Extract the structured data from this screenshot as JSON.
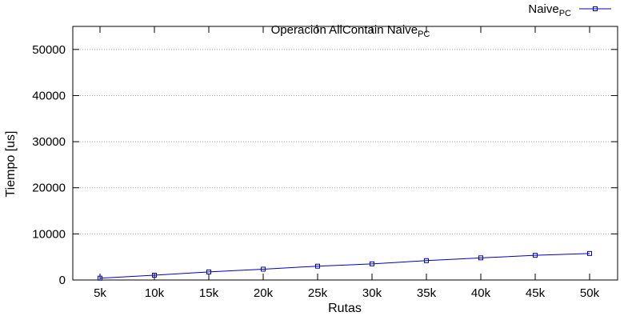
{
  "chart_data": {
    "type": "line",
    "title": "Operación AllContain Naive",
    "title_subscript": "PC",
    "xlabel": "Rutas",
    "ylabel": "Tiempo [us]",
    "categories": [
      "5k",
      "10k",
      "15k",
      "20k",
      "25k",
      "30k",
      "35k",
      "40k",
      "45k",
      "50k"
    ],
    "yticks": [
      "0",
      "10000",
      "20000",
      "30000",
      "40000",
      "50000"
    ],
    "ylim": [
      0,
      55000
    ],
    "grid": "horizontal-dotted",
    "legend_position": "top-right",
    "series": [
      {
        "name": "Naive",
        "name_subscript": "PC",
        "color": "#0000c0",
        "marker": "square",
        "values": [
          400,
          1050,
          1750,
          2350,
          3000,
          3500,
          4200,
          4800,
          5350,
          5750
        ]
      }
    ]
  }
}
